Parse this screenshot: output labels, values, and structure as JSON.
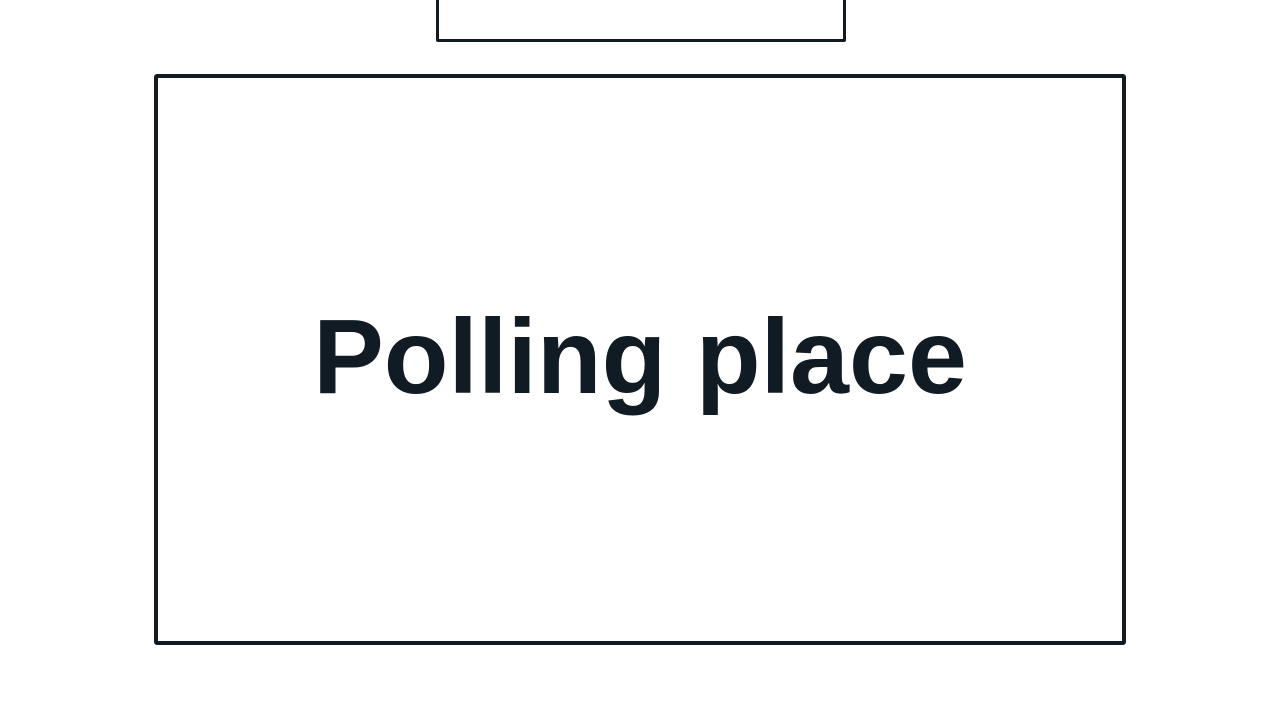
{
  "sign": {
    "text": "Polling place"
  },
  "colors": {
    "background": "#ffffff",
    "stroke": "#111b23",
    "text": "#111b23"
  }
}
